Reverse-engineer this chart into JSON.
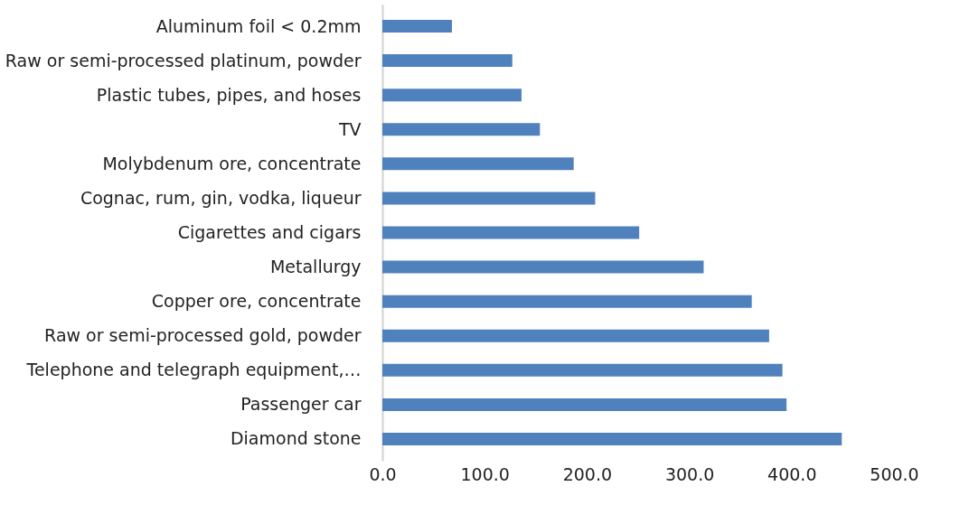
{
  "chart_data": {
    "type": "bar",
    "orientation": "horizontal",
    "categories": [
      "Aluminum foil < 0.2mm",
      "Raw or semi-processed platinum, powder",
      "Plastic tubes, pipes, and hoses",
      "TV",
      "Molybdenum ore, concentrate",
      "Cognac, rum, gin, vodka, liqueur",
      "Cigarettes and cigars",
      "Metallurgy",
      "Copper ore, concentrate",
      "Raw or semi-processed gold, powder",
      "Telephone and telegraph equipment,…",
      "Passenger car",
      "Diamond stone"
    ],
    "values": [
      68,
      127,
      136,
      154,
      187,
      208,
      251,
      314,
      361,
      378,
      391,
      395,
      449
    ],
    "color": "#4f81bd",
    "xlim": [
      0,
      500
    ],
    "xticks": [
      {
        "value": 0,
        "label": "0.0"
      },
      {
        "value": 100,
        "label": "100.0"
      },
      {
        "value": 200,
        "label": "200.0"
      },
      {
        "value": 300,
        "label": "300.0"
      },
      {
        "value": 400,
        "label": "400.0"
      },
      {
        "value": 500,
        "label": "500.0"
      }
    ],
    "grid": false
  }
}
